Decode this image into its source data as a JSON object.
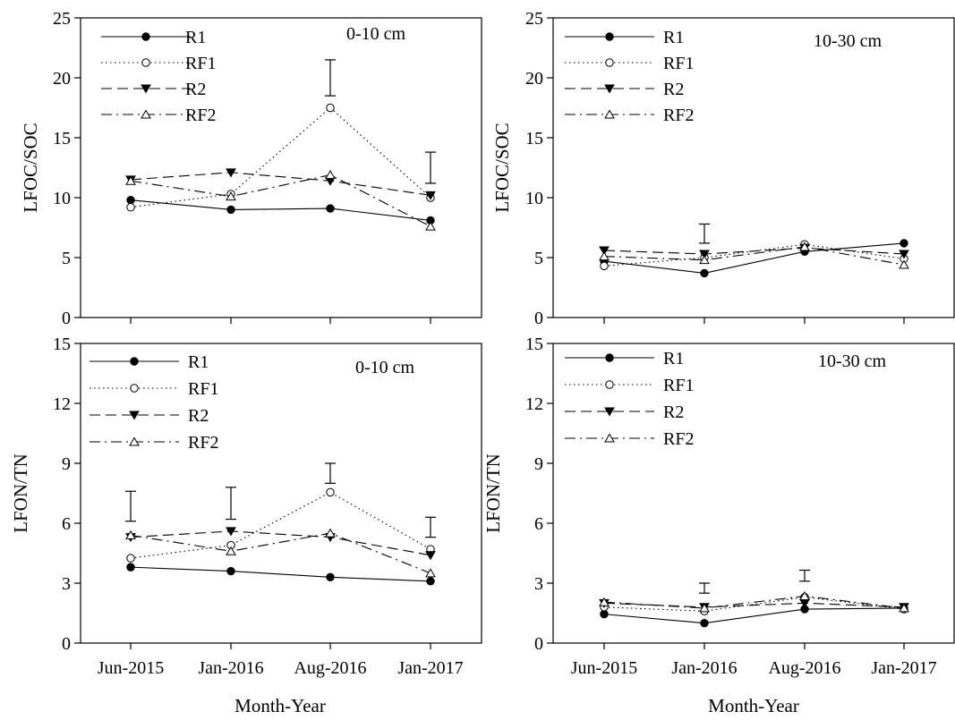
{
  "figure": {
    "xlabel": "Month-Year",
    "categories": [
      "Jun-2015",
      "Jan-2016",
      "Aug-2016",
      "Jan-2017"
    ]
  },
  "chart_data": [
    {
      "type": "line",
      "ylabel": "LFOC/SOC",
      "annotation": "0-10 cm",
      "ylim": [
        0,
        25
      ],
      "yticks": [
        0,
        5,
        10,
        15,
        20,
        25
      ],
      "categories": [
        "Jun-2015",
        "Jan-2016",
        "Aug-2016",
        "Jan-2017"
      ],
      "legend_position": "top-left",
      "series": [
        {
          "name": "R1",
          "marker": "filled-circle",
          "dash": "solid",
          "values": [
            9.8,
            9.0,
            9.1,
            8.1
          ]
        },
        {
          "name": "RF1",
          "marker": "open-circle",
          "dash": "dotted",
          "values": [
            9.2,
            10.3,
            17.5,
            10.0
          ]
        },
        {
          "name": "R2",
          "marker": "filled-triangle-down",
          "dash": "dashed",
          "values": [
            11.5,
            12.1,
            11.4,
            10.2
          ]
        },
        {
          "name": "RF2",
          "marker": "open-triangle-up",
          "dash": "dashdot",
          "values": [
            11.4,
            10.1,
            11.9,
            7.6
          ]
        }
      ],
      "error_bars": [
        {
          "category": "Aug-2016",
          "low": 18.5,
          "high": 21.5
        },
        {
          "category": "Jan-2017",
          "low": 11.2,
          "high": 13.8
        }
      ]
    },
    {
      "type": "line",
      "ylabel": "LFOC/SOC",
      "annotation": "10-30 cm",
      "ylim": [
        0,
        25
      ],
      "yticks": [
        0,
        5,
        10,
        15,
        20,
        25
      ],
      "categories": [
        "Jun-2015",
        "Jan-2016",
        "Aug-2016",
        "Jan-2017"
      ],
      "legend_position": "top-left",
      "series": [
        {
          "name": "R1",
          "marker": "filled-circle",
          "dash": "solid",
          "values": [
            4.7,
            3.7,
            5.5,
            6.2
          ]
        },
        {
          "name": "RF1",
          "marker": "open-circle",
          "dash": "dotted",
          "values": [
            4.3,
            5.0,
            6.1,
            4.9
          ]
        },
        {
          "name": "R2",
          "marker": "filled-triangle-down",
          "dash": "dashed",
          "values": [
            5.6,
            5.3,
            5.8,
            5.3
          ]
        },
        {
          "name": "RF2",
          "marker": "open-triangle-up",
          "dash": "dashdot",
          "values": [
            5.1,
            4.8,
            5.9,
            4.4
          ]
        }
      ],
      "error_bars": [
        {
          "category": "Jan-2016",
          "low": 6.2,
          "high": 7.8
        }
      ]
    },
    {
      "type": "line",
      "ylabel": "LFON/TN",
      "annotation": "0-10 cm",
      "ylim": [
        0,
        15
      ],
      "yticks": [
        0,
        3,
        6,
        9,
        12,
        15
      ],
      "categories": [
        "Jun-2015",
        "Jan-2016",
        "Aug-2016",
        "Jan-2017"
      ],
      "legend_position": "top-left",
      "series": [
        {
          "name": "R1",
          "marker": "filled-circle",
          "dash": "solid",
          "values": [
            3.8,
            3.6,
            3.3,
            3.1
          ]
        },
        {
          "name": "RF1",
          "marker": "open-circle",
          "dash": "dotted",
          "values": [
            4.25,
            4.9,
            7.55,
            4.7
          ]
        },
        {
          "name": "R2",
          "marker": "filled-triangle-down",
          "dash": "dashed",
          "values": [
            5.3,
            5.6,
            5.3,
            4.4
          ]
        },
        {
          "name": "RF2",
          "marker": "open-triangle-up",
          "dash": "dashdot",
          "values": [
            5.4,
            4.6,
            5.5,
            3.5
          ]
        }
      ],
      "error_bars": [
        {
          "category": "Jun-2015",
          "low": 6.1,
          "high": 7.6
        },
        {
          "category": "Jan-2016",
          "low": 6.2,
          "high": 7.8
        },
        {
          "category": "Aug-2016",
          "low": 8.0,
          "high": 9.0
        },
        {
          "category": "Jan-2017",
          "low": 5.3,
          "high": 6.3
        }
      ]
    },
    {
      "type": "line",
      "ylabel": "LFON/TN",
      "annotation": "10-30 cm",
      "ylim": [
        0,
        15
      ],
      "yticks": [
        0,
        3,
        6,
        9,
        12,
        15
      ],
      "categories": [
        "Jun-2015",
        "Jan-2016",
        "Aug-2016",
        "Jan-2017"
      ],
      "legend_position": "top-left",
      "series": [
        {
          "name": "R1",
          "marker": "filled-circle",
          "dash": "solid",
          "values": [
            1.45,
            1.0,
            1.7,
            1.75
          ]
        },
        {
          "name": "RF1",
          "marker": "open-circle",
          "dash": "dotted",
          "values": [
            1.8,
            1.6,
            2.3,
            1.7
          ]
        },
        {
          "name": "R2",
          "marker": "filled-triangle-down",
          "dash": "dashed",
          "values": [
            2.0,
            1.8,
            2.0,
            1.8
          ]
        },
        {
          "name": "RF2",
          "marker": "open-triangle-up",
          "dash": "dashdot",
          "values": [
            2.05,
            1.75,
            2.35,
            1.75
          ]
        }
      ],
      "error_bars": [
        {
          "category": "Jan-2016",
          "low": 2.5,
          "high": 3.0
        },
        {
          "category": "Aug-2016",
          "low": 3.1,
          "high": 3.65
        }
      ]
    }
  ]
}
